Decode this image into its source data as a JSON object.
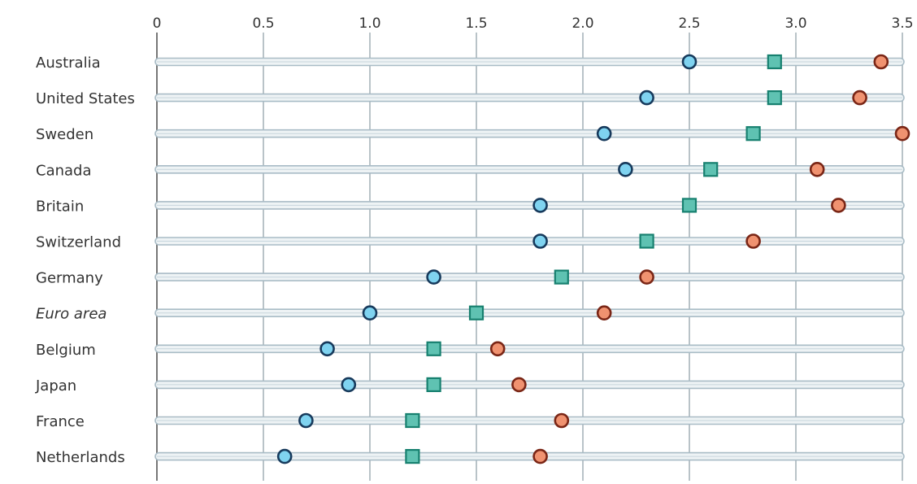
{
  "chart_data": {
    "type": "scatter",
    "title": "",
    "xlabel": "",
    "ylabel": "",
    "xlim": [
      0,
      3.5
    ],
    "x_ticks": [
      "0",
      "0.5",
      "1.0",
      "1.5",
      "2.0",
      "2.5",
      "3.0",
      "3.5"
    ],
    "x_tick_values": [
      0,
      0.5,
      1.0,
      1.5,
      2.0,
      2.5,
      3.0,
      3.5
    ],
    "axis_position": "top",
    "grid": true,
    "categories": [
      "Australia",
      "United States",
      "Sweden",
      "Canada",
      "Britain",
      "Switzerland",
      "Germany",
      "Euro area",
      "Belgium",
      "Japan",
      "France",
      "Netherlands"
    ],
    "italic_categories": [
      "Euro area"
    ],
    "series": [
      {
        "marker": "circle",
        "color": "#7fd3f0",
        "edge": "#173a5c",
        "values": [
          2.5,
          2.3,
          2.1,
          2.2,
          1.8,
          1.8,
          1.3,
          1.0,
          0.8,
          0.9,
          0.7,
          0.6
        ]
      },
      {
        "marker": "square",
        "color": "#5fc2b2",
        "edge": "#17806f",
        "values": [
          2.9,
          2.9,
          2.8,
          2.6,
          2.5,
          2.3,
          1.9,
          1.5,
          1.3,
          1.3,
          1.2,
          1.2
        ]
      },
      {
        "marker": "circle",
        "color": "#f09270",
        "edge": "#7a2616",
        "values": [
          3.4,
          3.3,
          3.5,
          3.1,
          3.2,
          2.8,
          2.3,
          2.1,
          1.6,
          1.7,
          1.9,
          1.8
        ]
      }
    ]
  }
}
